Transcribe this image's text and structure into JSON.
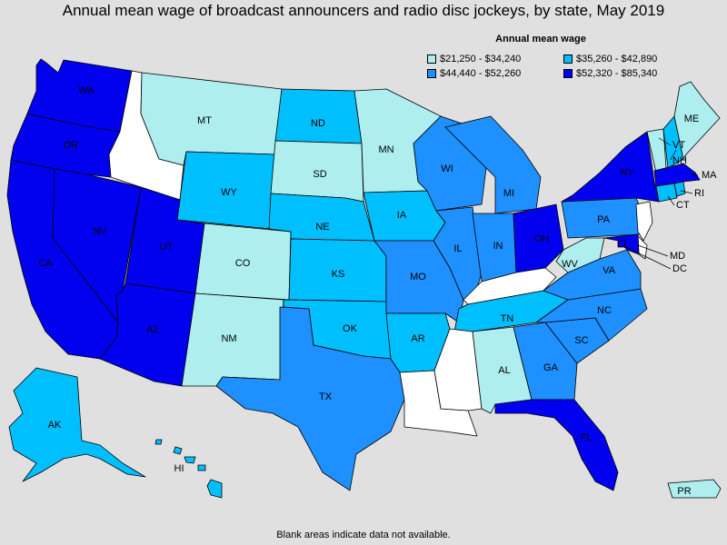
{
  "title": "Annual mean wage of broadcast announcers and radio disc jockeys, by state, May 2019",
  "footnote": "Blank areas indicate data not available.",
  "legend": {
    "title": "Annual mean wage",
    "bins": [
      {
        "id": "b1",
        "label": "$21,250 - $34,240",
        "color": "#aeeeee"
      },
      {
        "id": "b2",
        "label": "$35,260 - $42,890",
        "color": "#00bfff"
      },
      {
        "id": "b3",
        "label": "$44,440 - $52,260",
        "color": "#1e90ff"
      },
      {
        "id": "b4",
        "label": "$52,320 - $85,340",
        "color": "#0000ee"
      }
    ],
    "na_color": "#ffffff"
  },
  "states": [
    {
      "code": "WA",
      "bin": "b4"
    },
    {
      "code": "OR",
      "bin": "b4"
    },
    {
      "code": "CA",
      "bin": "b4"
    },
    {
      "code": "NV",
      "bin": "b4"
    },
    {
      "code": "ID",
      "bin": null
    },
    {
      "code": "MT",
      "bin": "b1"
    },
    {
      "code": "WY",
      "bin": "b2"
    },
    {
      "code": "UT",
      "bin": "b4"
    },
    {
      "code": "AZ",
      "bin": "b4"
    },
    {
      "code": "CO",
      "bin": "b1"
    },
    {
      "code": "NM",
      "bin": "b1"
    },
    {
      "code": "ND",
      "bin": "b2"
    },
    {
      "code": "SD",
      "bin": "b1"
    },
    {
      "code": "NE",
      "bin": "b2"
    },
    {
      "code": "KS",
      "bin": "b2"
    },
    {
      "code": "OK",
      "bin": "b2"
    },
    {
      "code": "TX",
      "bin": "b3"
    },
    {
      "code": "MN",
      "bin": "b1"
    },
    {
      "code": "IA",
      "bin": "b2"
    },
    {
      "code": "MO",
      "bin": "b3"
    },
    {
      "code": "AR",
      "bin": "b2"
    },
    {
      "code": "LA",
      "bin": null
    },
    {
      "code": "WI",
      "bin": "b3"
    },
    {
      "code": "IL",
      "bin": "b3"
    },
    {
      "code": "MI",
      "bin": "b3"
    },
    {
      "code": "IN",
      "bin": "b3"
    },
    {
      "code": "OH",
      "bin": "b4"
    },
    {
      "code": "KY",
      "bin": null
    },
    {
      "code": "TN",
      "bin": "b2"
    },
    {
      "code": "MS",
      "bin": null
    },
    {
      "code": "AL",
      "bin": "b1"
    },
    {
      "code": "GA",
      "bin": "b3"
    },
    {
      "code": "FL",
      "bin": "b4"
    },
    {
      "code": "SC",
      "bin": "b3"
    },
    {
      "code": "NC",
      "bin": "b3"
    },
    {
      "code": "VA",
      "bin": "b3"
    },
    {
      "code": "WV",
      "bin": "b1"
    },
    {
      "code": "PA",
      "bin": "b3"
    },
    {
      "code": "NY",
      "bin": "b4"
    },
    {
      "code": "VT",
      "bin": "b1"
    },
    {
      "code": "NH",
      "bin": "b2"
    },
    {
      "code": "ME",
      "bin": "b1"
    },
    {
      "code": "MA",
      "bin": "b4"
    },
    {
      "code": "CT",
      "bin": "b2"
    },
    {
      "code": "RI",
      "bin": "b2"
    },
    {
      "code": "NJ",
      "bin": null
    },
    {
      "code": "DE",
      "bin": null
    },
    {
      "code": "MD",
      "bin": "b4"
    },
    {
      "code": "DC",
      "bin": "b4"
    },
    {
      "code": "AK",
      "bin": "b2"
    },
    {
      "code": "HI",
      "bin": "b2"
    },
    {
      "code": "PR",
      "bin": "b1"
    }
  ]
}
